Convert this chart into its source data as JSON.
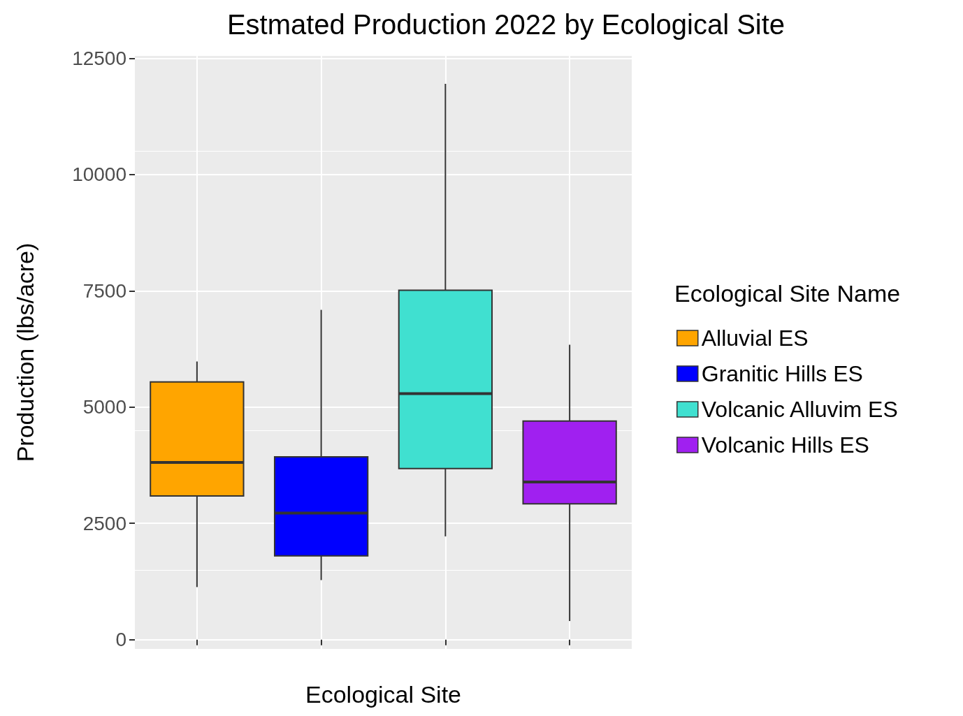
{
  "chart_data": {
    "type": "box",
    "title": "Estmated Production 2022 by Ecological Site",
    "xlabel": "Ecological Site",
    "ylabel": "Production (lbs/acre)",
    "legend_title": "Ecological Site Name",
    "categories": [
      null,
      null,
      null,
      null
    ],
    "series": [
      {
        "name": "Alluvial ES",
        "color": "#ffa500",
        "boxes": [
          {
            "low": 1130,
            "q1": 3090,
            "median": 3810,
            "q3": 5540,
            "high": 5980
          },
          null,
          null,
          null
        ]
      },
      {
        "name": "Granitic Hills ES",
        "color": "#0000ff",
        "boxes": [
          null,
          {
            "low": 1280,
            "q1": 1800,
            "median": 2720,
            "q3": 3930,
            "high": 7090
          },
          null,
          null
        ]
      },
      {
        "name": "Volcanic Alluvim ES",
        "color": "#40e0d0",
        "boxes": [
          null,
          null,
          {
            "low": 2220,
            "q1": 3680,
            "median": 5290,
            "q3": 7510,
            "high": 11950
          },
          null
        ]
      },
      {
        "name": "Volcanic Hills ES",
        "color": "#a020f0",
        "boxes": [
          null,
          null,
          null,
          {
            "low": 400,
            "q1": 2920,
            "median": 3390,
            "q3": 4700,
            "high": 6340
          }
        ]
      }
    ],
    "ylim": [
      -200,
      12550
    ],
    "yticks": [
      0,
      2500,
      5000,
      7500,
      10000,
      12500
    ],
    "grid": true,
    "legend": "right"
  }
}
